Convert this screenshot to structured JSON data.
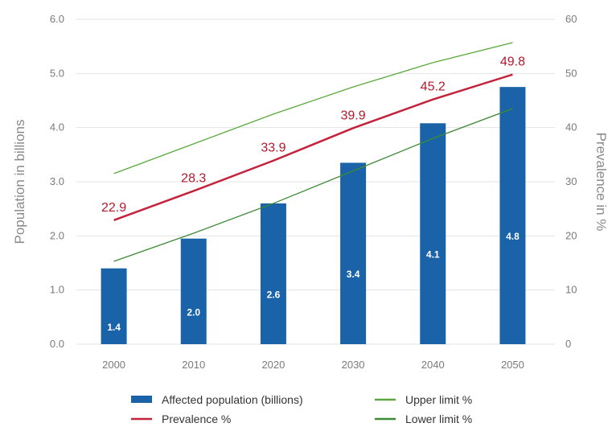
{
  "chart_data": {
    "type": "bar",
    "categories": [
      "2000",
      "2010",
      "2020",
      "2030",
      "2040",
      "2050"
    ],
    "y_left": {
      "label": "Population in billions",
      "lim": [
        0,
        6
      ],
      "ticks": [
        "0.0",
        "1.0",
        "2.0",
        "3.0",
        "4.0",
        "5.0",
        "6.0"
      ]
    },
    "y_right": {
      "label": "Prevalence in %",
      "lim": [
        0,
        60
      ],
      "ticks": [
        "0",
        "10",
        "20",
        "30",
        "40",
        "50",
        "60"
      ]
    },
    "series": [
      {
        "name": "Affected population (billions)",
        "kind": "bar",
        "axis": "left",
        "color": "#1a63a8",
        "values": [
          1.4,
          1.95,
          2.6,
          3.35,
          4.08,
          4.75
        ],
        "labels": [
          "1.4",
          "2.0",
          "2.6",
          "3.4",
          "4.1",
          "4.8"
        ]
      },
      {
        "name": "Prevalence %",
        "kind": "line",
        "axis": "right",
        "color": "#c4213a",
        "values": [
          22.9,
          28.3,
          33.9,
          39.9,
          45.2,
          49.8
        ],
        "labels": [
          "22.9",
          "28.3",
          "33.9",
          "39.9",
          "45.2",
          "49.8"
        ]
      },
      {
        "name": "Upper limit %",
        "kind": "line",
        "axis": "right",
        "color": "#5aa83d",
        "values": [
          31.5,
          37.0,
          42.5,
          47.5,
          52.0,
          55.7
        ]
      },
      {
        "name": "Lower limit %",
        "kind": "line",
        "axis": "right",
        "color": "#3d8a35",
        "values": [
          15.3,
          20.5,
          26.0,
          32.0,
          38.0,
          43.5
        ]
      }
    ],
    "grid": true,
    "legend": "bottom"
  }
}
